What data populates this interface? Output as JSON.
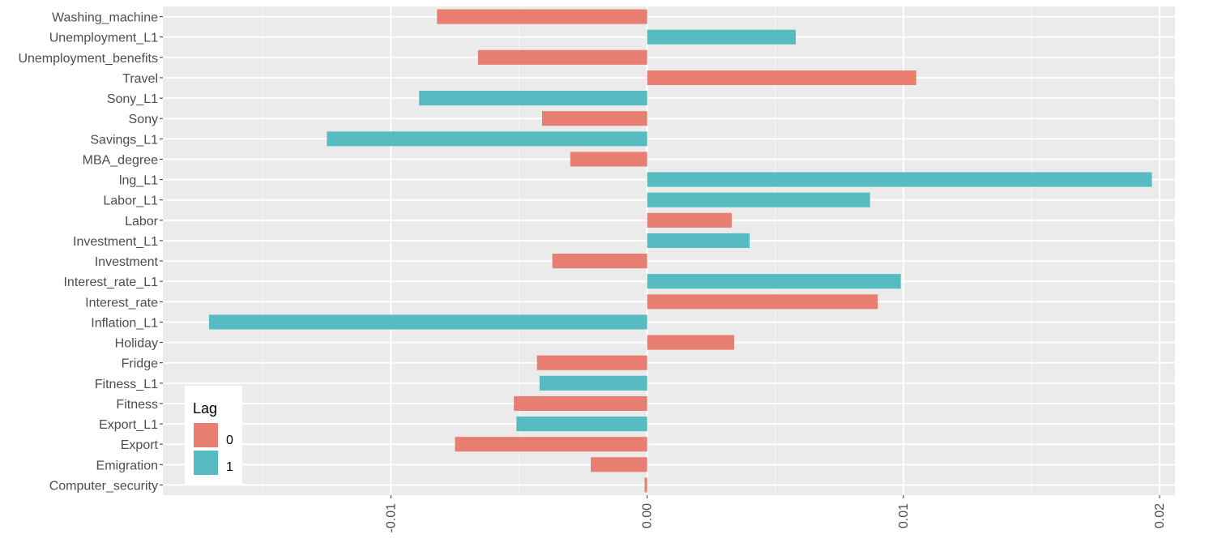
{
  "chart_data": {
    "type": "bar",
    "orientation": "horizontal",
    "categories": [
      "Washing_machine",
      "Unemployment_L1",
      "Unemployment_benefits",
      "Travel",
      "Sony_L1",
      "Sony",
      "Savings_L1",
      "MBA_degree",
      "lng_L1",
      "Labor_L1",
      "Labor",
      "Investment_L1",
      "Investment",
      "Interest_rate_L1",
      "Interest_rate",
      "Inflation_L1",
      "Holiday",
      "Fridge",
      "Fitness_L1",
      "Fitness",
      "Export_L1",
      "Export",
      "Emigration",
      "Computer_security"
    ],
    "values": [
      -0.0082,
      0.0058,
      -0.0066,
      0.0105,
      -0.0089,
      -0.0041,
      -0.0125,
      -0.003,
      0.0197,
      0.0087,
      0.0033,
      0.004,
      -0.0037,
      0.0099,
      0.009,
      -0.0171,
      0.0034,
      -0.0043,
      -0.0042,
      -0.0052,
      -0.0051,
      -0.0075,
      -0.0022,
      -0.0001
    ],
    "lag": [
      "0",
      "1",
      "0",
      "0",
      "1",
      "0",
      "1",
      "0",
      "1",
      "1",
      "0",
      "1",
      "0",
      "1",
      "0",
      "1",
      "0",
      "0",
      "1",
      "0",
      "1",
      "0",
      "0",
      "0"
    ],
    "xlim": [
      -0.0189,
      0.0206
    ],
    "xticks": [
      -0.01,
      0.0,
      0.01,
      0.02
    ],
    "xtick_labels": [
      "-0.01",
      "0.00",
      "0.01",
      "0.02"
    ],
    "grid": true,
    "xlabel": "",
    "ylabel": "",
    "legend": {
      "title": "Lag",
      "placement": "bottom-left",
      "entries": [
        {
          "label": "0",
          "color": "#E87D72"
        },
        {
          "label": "1",
          "color": "#56BCC2"
        }
      ]
    }
  },
  "colors": {
    "panel_background": "#EBEBEB",
    "grid_major": "#FFFFFF",
    "lag_0": "#E87D72",
    "lag_1": "#56BCC2"
  }
}
